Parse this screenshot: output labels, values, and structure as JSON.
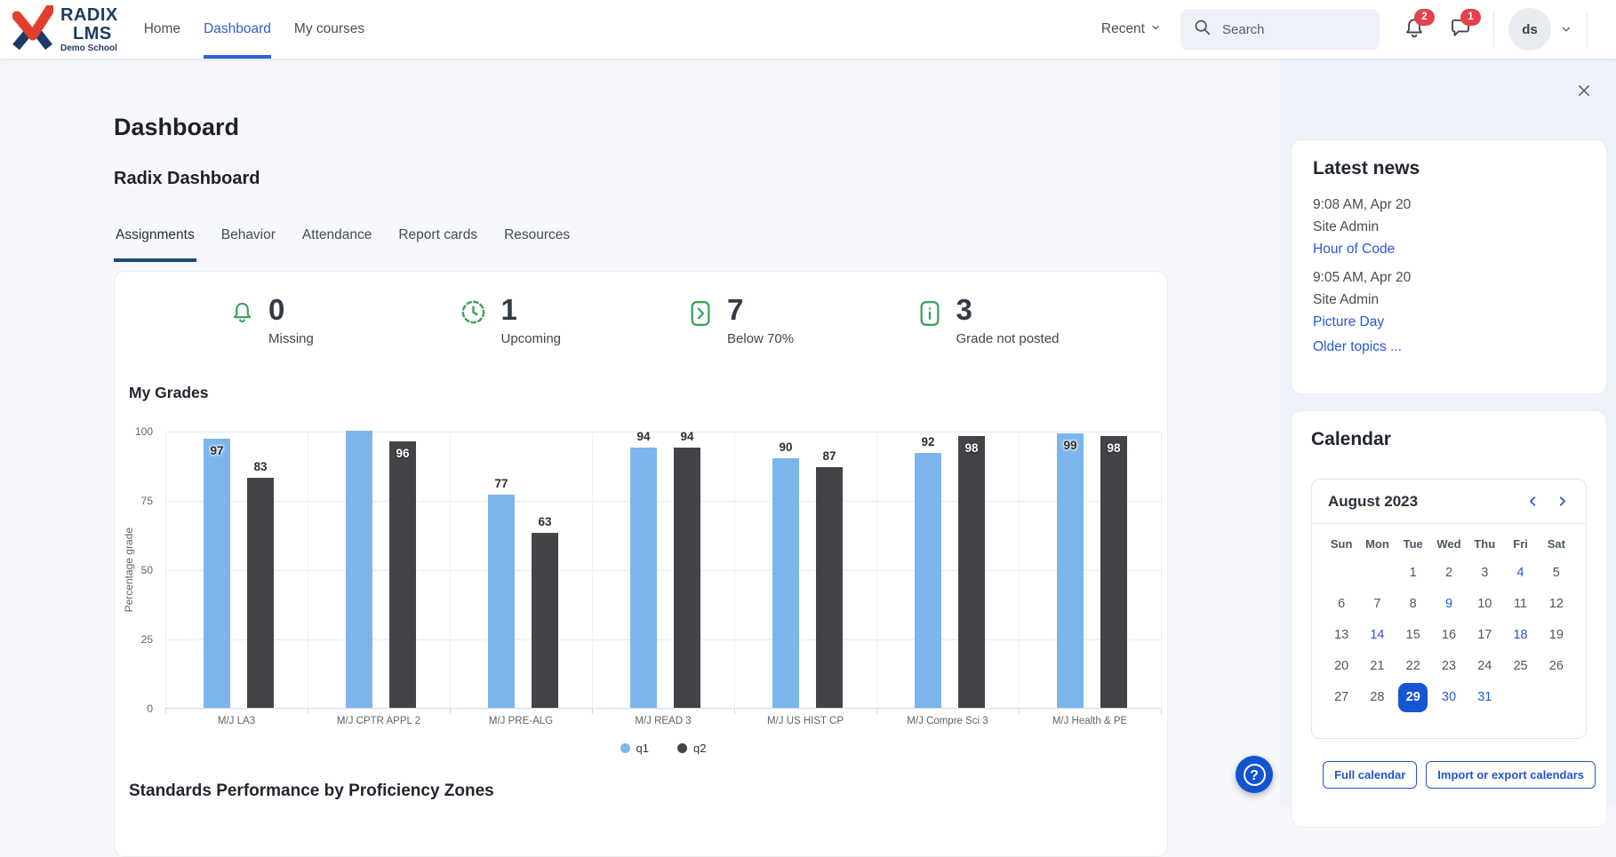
{
  "colors": {
    "accent": "#2c5fd9",
    "link": "#2857d8",
    "tab_underline": "#1f4b78",
    "green": "#3aa45c",
    "badge_red": "#e2414d",
    "chart_blue": "#7cb5ec",
    "chart_dark": "#434348",
    "selected_day_bg": "#1656d4",
    "brand_navy": "#1d3a66",
    "brand_red": "#e23e2e"
  },
  "navbar": {
    "brand": {
      "line1": "RADIX",
      "line2": "LMS",
      "line3": "Demo School"
    },
    "links": [
      {
        "label": "Home",
        "active": false
      },
      {
        "label": "Dashboard",
        "active": true
      },
      {
        "label": "My courses",
        "active": false
      }
    ],
    "recent_label": "Recent",
    "search_placeholder": "Search",
    "notification_count": "2",
    "message_count": "1",
    "avatar_initials": "ds"
  },
  "page": {
    "title": "Dashboard",
    "subtitle": "Radix Dashboard"
  },
  "tabs": {
    "items": [
      "Assignments",
      "Behavior",
      "Attendance",
      "Report cards",
      "Resources"
    ],
    "active_index": 0
  },
  "stats": [
    {
      "icon": "bell-icon",
      "value": "0",
      "label": "Missing"
    },
    {
      "icon": "clock-icon",
      "value": "1",
      "label": "Upcoming"
    },
    {
      "icon": "chevron-square-icon",
      "value": "7",
      "label": "Below 70%"
    },
    {
      "icon": "info-square-icon",
      "value": "3",
      "label": "Grade not posted"
    }
  ],
  "chart_data": {
    "type": "bar",
    "title": "My Grades",
    "xlabel": "",
    "ylabel": "Percentage grade",
    "ylim": [
      0,
      100
    ],
    "yticks": [
      0,
      25,
      50,
      75,
      100
    ],
    "grid": true,
    "legend_position": "bottom",
    "categories": [
      "M/J LA3",
      "M/J CPTR APPL 2",
      "M/J PRE-ALG",
      "M/J READ 3",
      "M/J US HIST CP",
      "M/J Compre Sci 3",
      "M/J Health & PE"
    ],
    "series": [
      {
        "name": "q1",
        "color": "#7cb5ec",
        "values": [
          97,
          100,
          77,
          94,
          90,
          92,
          99
        ],
        "labels": [
          "97",
          "",
          "77",
          "94",
          "90",
          "92",
          "99"
        ]
      },
      {
        "name": "q2",
        "color": "#434348",
        "values": [
          83,
          96,
          63,
          94,
          87,
          98,
          98
        ],
        "labels": [
          "83",
          "96",
          "63",
          "94",
          "87",
          "98",
          "98"
        ]
      }
    ]
  },
  "standards_section_title": "Standards Performance by Proficiency Zones",
  "latest_news": {
    "title": "Latest news",
    "items": [
      {
        "time": "9:08 AM, Apr 20",
        "author": "Site Admin",
        "topic": "Hour of Code"
      },
      {
        "time": "9:05 AM, Apr 20",
        "author": "Site Admin",
        "topic": "Picture Day"
      }
    ],
    "older_label": "Older topics ..."
  },
  "calendar": {
    "title": "Calendar",
    "month": "August 2023",
    "weekdays": [
      "Sun",
      "Mon",
      "Tue",
      "Wed",
      "Thu",
      "Fri",
      "Sat"
    ],
    "weeks": [
      [
        "",
        "",
        "1",
        "2",
        "3",
        "4",
        "5"
      ],
      [
        "6",
        "7",
        "8",
        "9",
        "10",
        "11",
        "12"
      ],
      [
        "13",
        "14",
        "15",
        "16",
        "17",
        "18",
        "19"
      ],
      [
        "20",
        "21",
        "22",
        "23",
        "24",
        "25",
        "26"
      ],
      [
        "27",
        "28",
        "29",
        "30",
        "31",
        "",
        ""
      ]
    ],
    "event_days": [
      "4",
      "9",
      "14",
      "18",
      "30",
      "31"
    ],
    "selected_day": "29",
    "footer_buttons": [
      "Full calendar",
      "Import or export calendars"
    ]
  }
}
